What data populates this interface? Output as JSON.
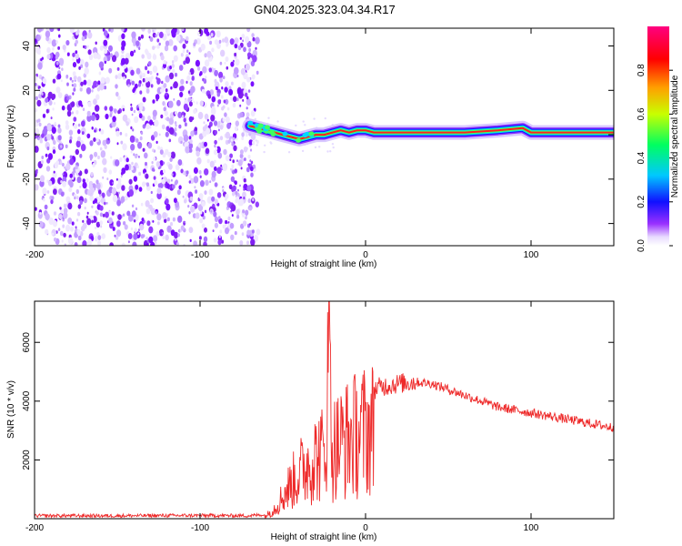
{
  "figure_title": "GN04.2025.323.04.34.R17",
  "chart_data": [
    {
      "type": "heatmap",
      "title": "GN04.2025.323.04.34.R17",
      "xlabel": "Height of straight line (km)",
      "ylabel": "Frequency (Hz)",
      "xlim": [
        -200,
        150
      ],
      "ylim": [
        -50,
        48
      ],
      "xticks": [
        -200,
        -100,
        0,
        100
      ],
      "yticks": [
        -40,
        -20,
        0,
        20,
        40
      ],
      "noise_region_x": [
        -200,
        -67
      ],
      "signal_track": {
        "x": [
          -70,
          -65,
          -60,
          -55,
          -50,
          -45,
          -40,
          -35,
          -30,
          -25,
          -20,
          -15,
          -10,
          -5,
          0,
          5,
          10,
          20,
          40,
          60,
          80,
          95,
          100,
          120,
          150
        ],
        "freq": [
          4,
          3,
          2,
          1,
          0,
          -1,
          -2,
          -1,
          0,
          0,
          1,
          2,
          1,
          2,
          2,
          1,
          1,
          1,
          1,
          1,
          2,
          3,
          1,
          1,
          1
        ]
      },
      "colorbar": {
        "label": "Normalized spectral amplitude",
        "range": [
          0,
          1
        ],
        "ticks": [
          0.0,
          0.2,
          0.4,
          0.6,
          0.8
        ],
        "colormap": [
          "#ffffff",
          "#7a00ff",
          "#0000ff",
          "#00c8ff",
          "#00ff60",
          "#c8ff00",
          "#ffa000",
          "#ff0000",
          "#ff0080"
        ]
      }
    },
    {
      "type": "line",
      "xlabel": "Height of straight line (km)",
      "ylabel": "SNR (10 * v/v)",
      "xlim": [
        -200,
        150
      ],
      "ylim": [
        0,
        7400
      ],
      "xticks": [
        -200,
        -100,
        0,
        100
      ],
      "yticks": [
        2000,
        4000,
        6000
      ],
      "line_color": "#ee2a2a",
      "series": [
        {
          "name": "SNR",
          "x": [
            -200,
            -150,
            -100,
            -70,
            -60,
            -55,
            -50,
            -45,
            -40,
            -35,
            -30,
            -25,
            -22,
            -20,
            -15,
            -10,
            -5,
            0,
            5,
            10,
            20,
            30,
            40,
            45,
            50,
            60,
            70,
            80,
            90,
            100,
            110,
            120,
            130,
            140,
            150
          ],
          "values": [
            100,
            100,
            110,
            100,
            150,
            500,
            1100,
            1700,
            2200,
            2700,
            3000,
            3200,
            7400,
            3400,
            3700,
            3900,
            4100,
            4300,
            4400,
            4500,
            4600,
            4650,
            4600,
            4500,
            4400,
            4200,
            4000,
            3800,
            3700,
            3600,
            3500,
            3400,
            3300,
            3200,
            3100
          ]
        }
      ]
    }
  ]
}
